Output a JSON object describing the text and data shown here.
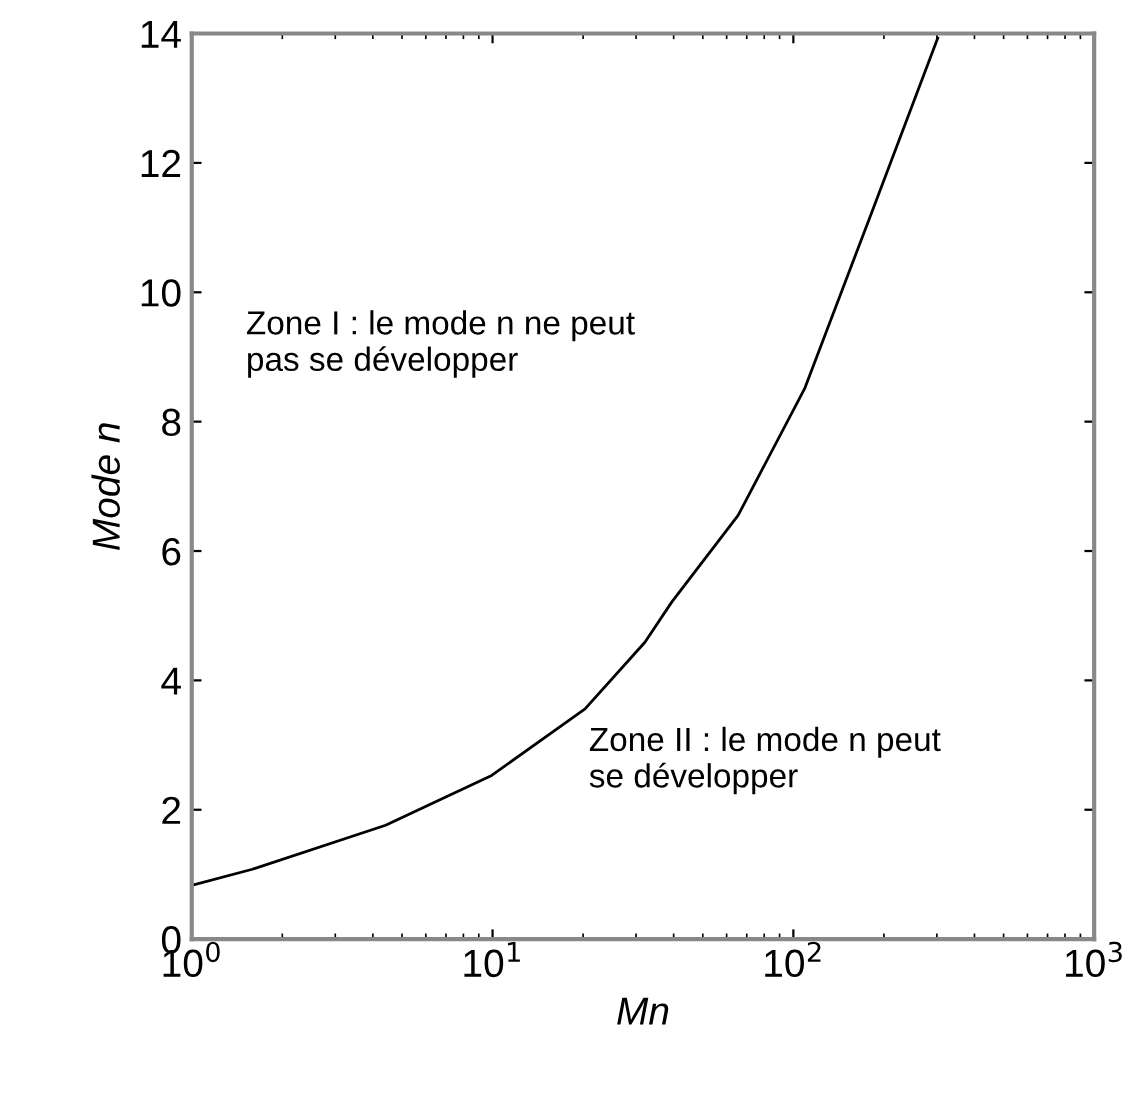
{
  "chart_data": {
    "type": "line",
    "xlabel": "Mn",
    "ylabel": "Mode n",
    "annotations": [
      "Zone I : le mode n ne peut\npas se développer",
      "Zone II : le mode n peut\nse développer"
    ],
    "series": [
      {
        "color": "#000000",
        "x": [
          1,
          1.59,
          4.41,
          9.93,
          20.3,
          32.1,
          39.4,
          65.5,
          109,
          181,
          302
        ],
        "values": [
          0.83,
          1.08,
          1.76,
          2.53,
          3.56,
          4.59,
          5.21,
          6.55,
          8.51,
          11.2,
          13.93
        ]
      }
    ],
    "log": "x",
    "xlim": [
      1,
      1000
    ],
    "ylim": [
      0,
      14
    ],
    "xticks": [
      {
        "value": 1,
        "label": "10$^{0}$"
      },
      {
        "value": 10,
        "label": "10$^{1}$"
      },
      {
        "value": 100,
        "label": "10$^{2}$"
      },
      {
        "value": 1000,
        "label": "10$^{3}$"
      }
    ],
    "yticks": [
      0,
      2,
      4,
      6,
      8,
      10,
      12,
      14
    ],
    "grid": false,
    "marker": "none",
    "line_style": "solid"
  }
}
